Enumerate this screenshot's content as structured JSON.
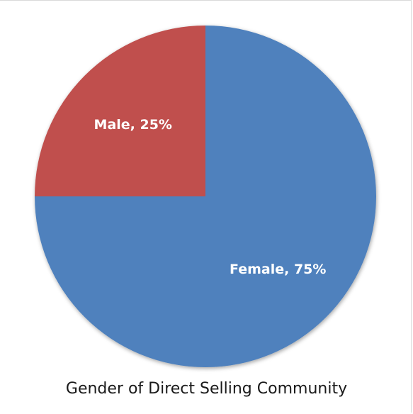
{
  "chart_data": {
    "type": "pie",
    "title": "Gender of Direct Selling Community",
    "slices": [
      {
        "label": "Male",
        "value": 25,
        "color": "#c0504d",
        "data_label": "Male, 25%"
      },
      {
        "label": "Female",
        "value": 75,
        "color": "#4f81bd",
        "data_label": "Female, 75%"
      }
    ],
    "start_angle_deg": 0,
    "direction": "counterclockwise",
    "legend": "none"
  }
}
